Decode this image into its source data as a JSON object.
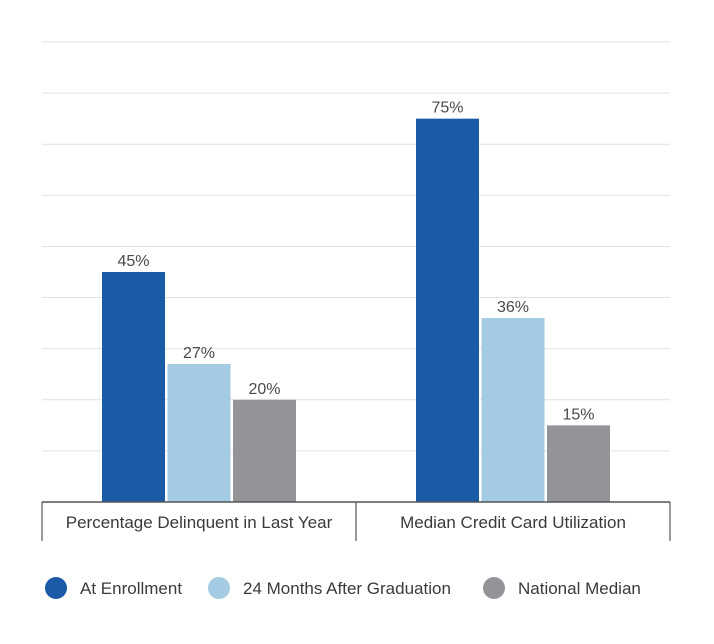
{
  "chart_data": {
    "type": "bar",
    "categories": [
      "Percentage Delinquent in Last Year",
      "Median Credit Card Utilization"
    ],
    "series": [
      {
        "name": "At Enrollment",
        "values": [
          45,
          75
        ],
        "labels": [
          "45%",
          "75%"
        ],
        "color": "#1a5ba6"
      },
      {
        "name": "24 Months After Graduation",
        "values": [
          27,
          36
        ],
        "labels": [
          "27%",
          "36%"
        ],
        "color": "#a3cbe3"
      },
      {
        "name": "National Median",
        "values": [
          20,
          15
        ],
        "labels": [
          "20%",
          "15%"
        ],
        "color": "#939497"
      }
    ],
    "ylim": [
      0,
      90
    ],
    "grid": true,
    "legend_position": "bottom"
  }
}
